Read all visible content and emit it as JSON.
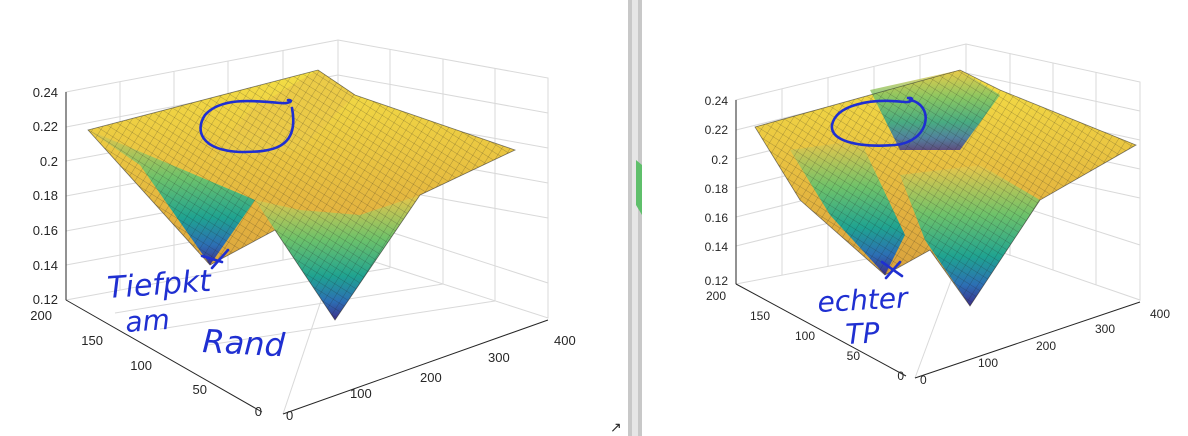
{
  "chart_data": [
    {
      "type": "surface",
      "zlim": [
        0.12,
        0.24
      ],
      "z_ticks": [
        "0.24",
        "0.22",
        "0.2",
        "0.18",
        "0.16",
        "0.14",
        "0.12"
      ],
      "y_ticks": [
        "200",
        "150",
        "100",
        "50",
        "0"
      ],
      "x_ticks": [
        "0",
        "100",
        "200",
        "300",
        "400"
      ],
      "grid": true,
      "annotations": [
        "Tiefpkt",
        "am",
        "Rand"
      ]
    },
    {
      "type": "surface",
      "zlim": [
        0.12,
        0.24
      ],
      "z_ticks": [
        "0.24",
        "0.22",
        "0.2",
        "0.18",
        "0.16",
        "0.14",
        "0.12"
      ],
      "y_ticks": [
        "200",
        "150",
        "100",
        "50",
        "0"
      ],
      "x_ticks": [
        "0",
        "100",
        "200",
        "300",
        "400"
      ],
      "grid": true,
      "annotations": [
        "echter",
        "TP"
      ]
    }
  ],
  "colors": {
    "ink": "#1f2fd1",
    "surface_low": "#3b2f8f",
    "surface_mid": "#21a685",
    "surface_high": "#f7d93a"
  }
}
